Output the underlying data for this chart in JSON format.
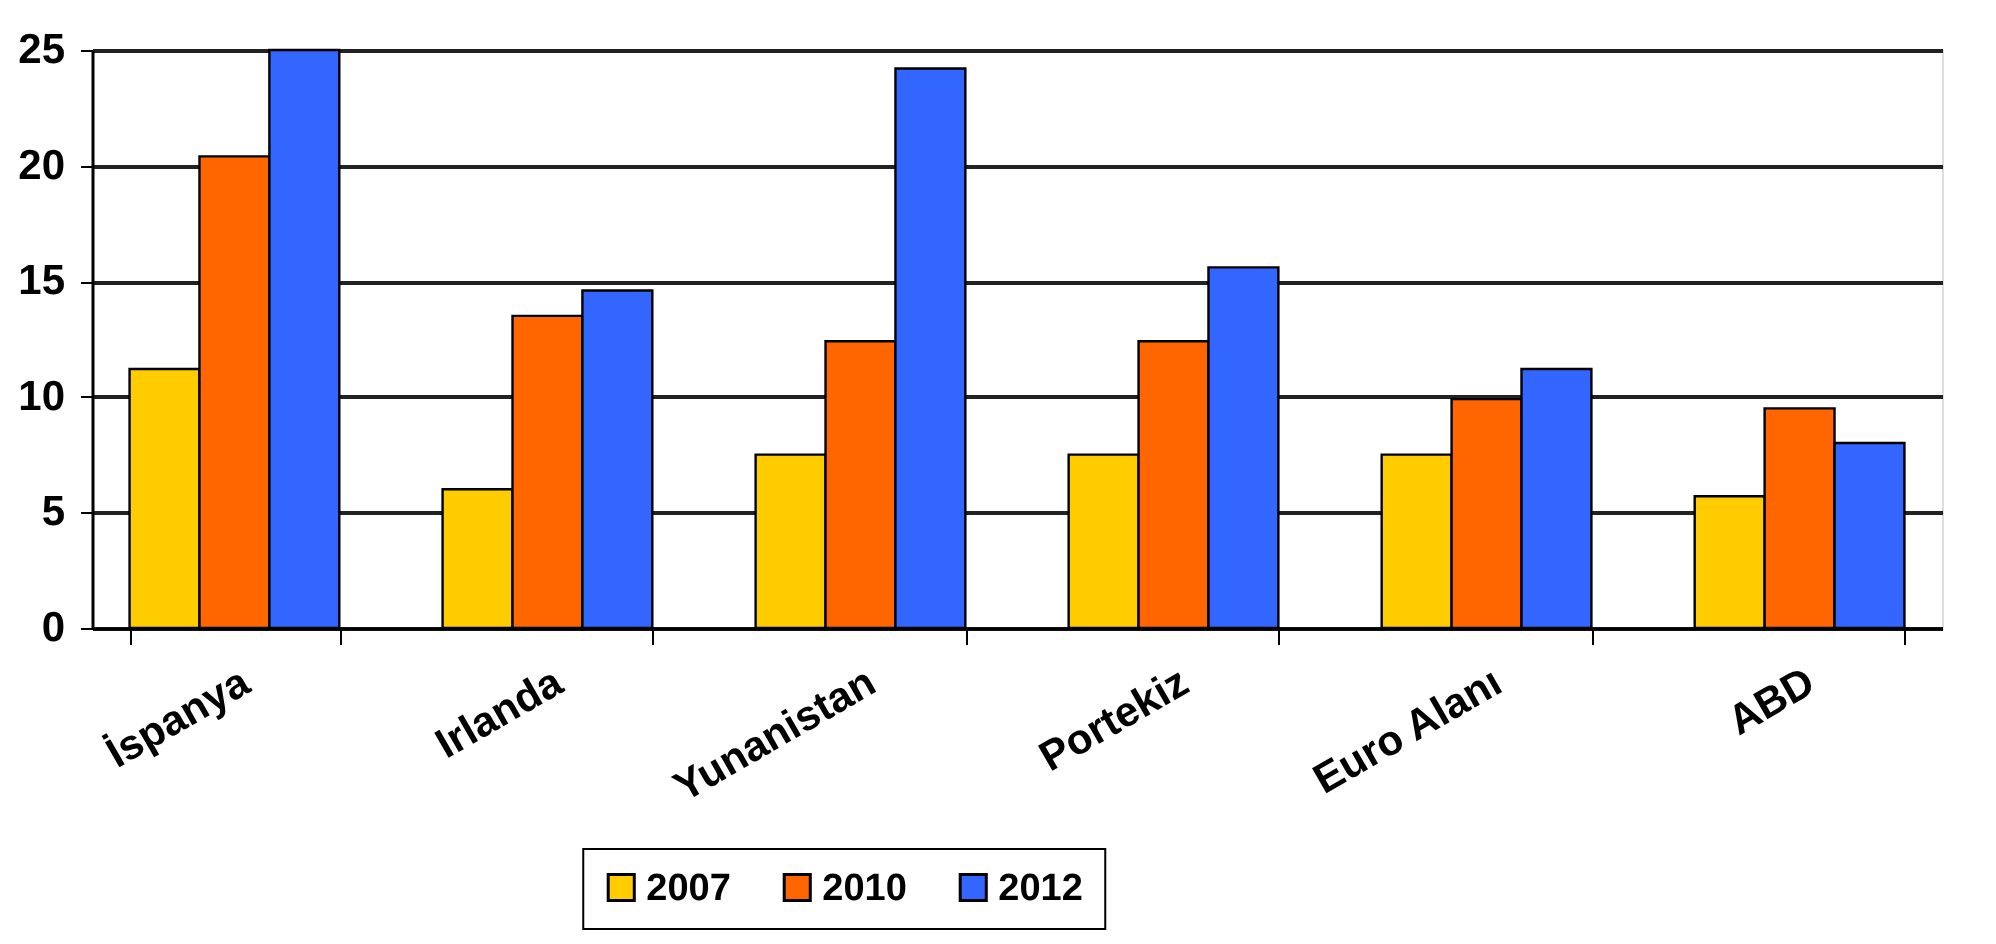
{
  "chart_data": {
    "type": "bar",
    "categories": [
      "İspanya",
      "Irlanda",
      "Yunanistan",
      "Portekiz",
      "Euro Alanı",
      "ABD"
    ],
    "series": [
      {
        "name": "2007",
        "color": "#ffcc00",
        "values": [
          11.2,
          6.0,
          7.5,
          7.5,
          7.5,
          5.7
        ]
      },
      {
        "name": "2010",
        "color": "#ff6600",
        "values": [
          20.4,
          13.5,
          12.4,
          12.4,
          9.9,
          9.5
        ]
      },
      {
        "name": "2012",
        "color": "#3366ff",
        "values": [
          25.0,
          14.6,
          24.2,
          15.6,
          11.2,
          8.0
        ]
      }
    ],
    "ylim": [
      0,
      25
    ],
    "yticks": [
      0,
      5,
      10,
      15,
      20,
      25
    ],
    "grid": "y",
    "legend": "bottom"
  }
}
